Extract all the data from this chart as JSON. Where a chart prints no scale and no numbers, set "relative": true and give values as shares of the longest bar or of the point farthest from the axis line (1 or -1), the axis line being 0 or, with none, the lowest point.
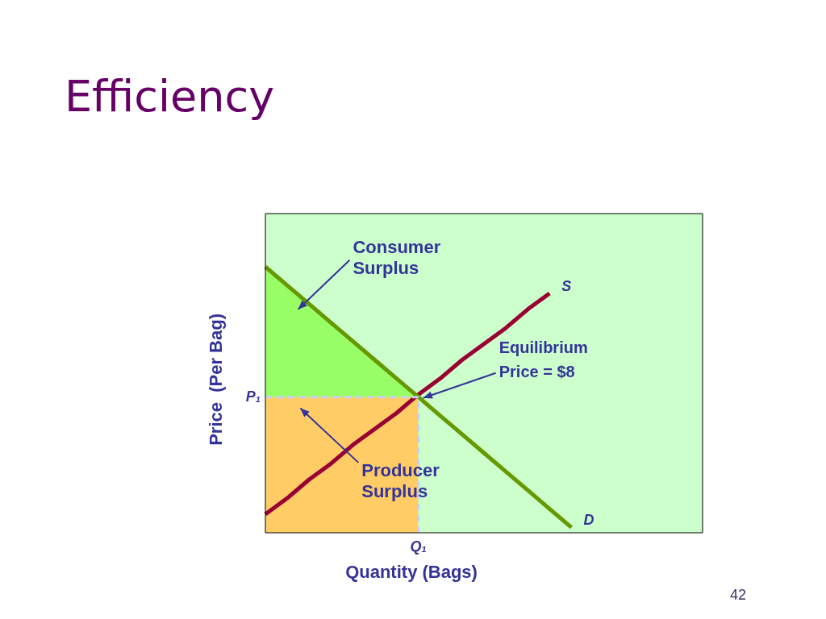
{
  "chart_data": {
    "type": "line",
    "title": "Efficiency",
    "xlabel": "Quantity (Bags)",
    "ylabel": "Price  (Per Bag)",
    "relative": true,
    "grid": false,
    "legend": false,
    "marker": "none",
    "categories": [
      null,
      null,
      null,
      null,
      null,
      null,
      null,
      null,
      null,
      null,
      null,
      null,
      null,
      null,
      null,
      null,
      null,
      null,
      null,
      null,
      null
    ],
    "series": [
      {
        "name": "Producer Surplus",
        "type": "area",
        "color": "#ffcc66",
        "values": [
          0.51,
          0.51,
          0.51,
          0.51,
          0.51,
          0.51,
          0.51,
          0.51,
          null,
          null,
          null,
          null,
          null,
          null,
          null,
          null,
          null,
          null,
          null,
          null,
          null
        ]
      },
      {
        "name": "Consumer Surplus",
        "type": "area",
        "color": "#99ff66",
        "values": [
          1,
          0.93,
          0.86,
          0.79,
          0.72,
          0.65,
          0.58,
          0.51,
          null,
          null,
          null,
          null,
          null,
          null,
          null,
          null,
          null,
          null,
          null,
          null,
          null
        ]
      },
      {
        "name": "D",
        "type": "line",
        "color": "#669900",
        "values": [
          1,
          0.93,
          0.86,
          0.79,
          0.72,
          0.65,
          0.58,
          0.51,
          0.44,
          0.37,
          0.3,
          0.23,
          0.16,
          0.09,
          0.02,
          null,
          null,
          null,
          null,
          null,
          null
        ]
      },
      {
        "name": "S",
        "type": "line",
        "color": "#990033",
        "values": [
          0.07,
          0.13,
          0.2,
          0.26,
          0.33,
          0.39,
          0.45,
          0.52,
          0.58,
          0.65,
          0.71,
          0.77,
          0.84,
          0.9,
          null,
          null,
          null,
          null,
          null,
          null,
          null
        ]
      }
    ],
    "ref_lines": [
      {
        "axis": "y",
        "value": 0.51,
        "label": "P₁",
        "color": "#ccccff",
        "line_style": "dashed"
      },
      {
        "axis": "x",
        "label": "Q₁",
        "color": "#ccccff",
        "line_style": "dashed"
      }
    ],
    "annotations": [
      "Equilibrium Price = $8",
      "42"
    ]
  }
}
